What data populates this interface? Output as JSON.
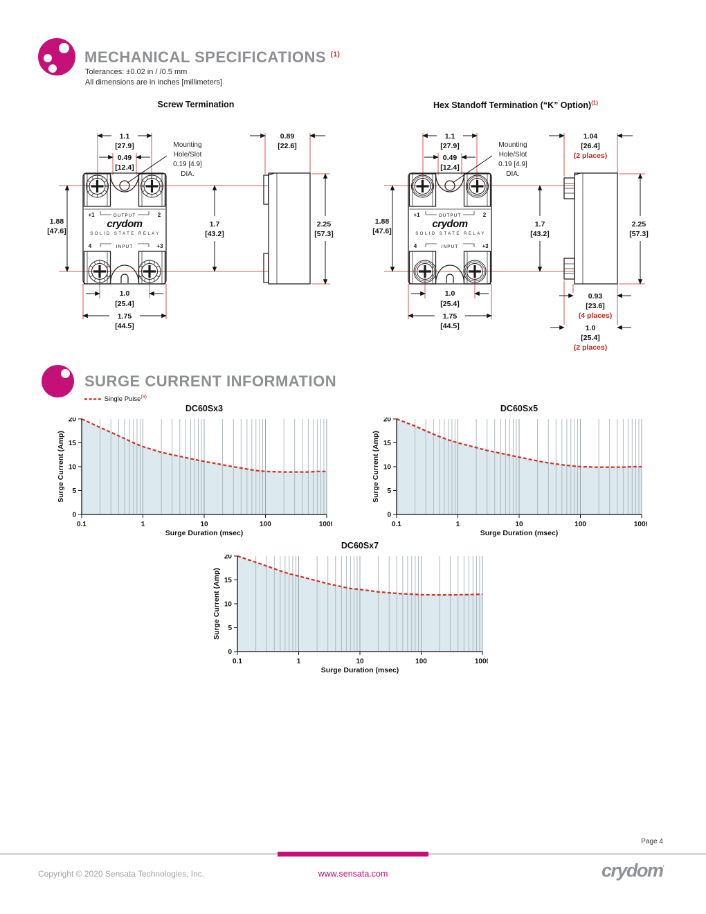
{
  "page": {
    "page_number": "Page 4",
    "copyright": "Copyright © 2020 Sensata Technologies, Inc.",
    "website": "www.sensata.com",
    "brand_logo": "crydom",
    "brand_mark": "’",
    "colors": {
      "magenta": "#c51077",
      "red": "#c8281e",
      "heading_gray": "#8d8f92",
      "chart_fill": "#dce9ee",
      "curve_red": "#d2342c"
    }
  },
  "mech": {
    "heading": "MECHANICAL SPECIFICATIONS",
    "heading_sup": "(1)",
    "tolerance_note": "Tolerances: ±0.02 in / /0.5 mm",
    "units_note": "All dimensions are in inches [millimeters]",
    "mount_note": [
      "Mounting",
      "Hole/Slot",
      "0.19 [4.9]",
      "DIA."
    ],
    "relay_face": {
      "t1": "+1",
      "output": "OUTPUT",
      "t2": "2",
      "brand": "crydom",
      "sub": "SOLID STATE RELAY",
      "t4": "4",
      "input": "INPUT",
      "t3": "+3"
    },
    "screw_view": {
      "title": "Screw Termination",
      "dims": {
        "w_top": [
          "1.1",
          "[27.9]"
        ],
        "w_inner": [
          "0.49",
          "[12.4]"
        ],
        "side_w": [
          "0.89",
          "[22.6]"
        ],
        "h_left": [
          "1.88",
          "[47.6]"
        ],
        "h_center": [
          "1.7",
          "[43.2]"
        ],
        "h_side": [
          "2.25",
          "[57.3]"
        ],
        "w_bottom_inner": [
          "1.0",
          "[25.4]"
        ],
        "w_bottom": [
          "1.75",
          "[44.5]"
        ]
      }
    },
    "hex_view": {
      "title": "Hex Standoff Termination (“K” Option)",
      "title_sup": "(1)",
      "dims": {
        "w_top": [
          "1.1",
          "[27.9]"
        ],
        "w_inner": [
          "0.49",
          "[12.4]"
        ],
        "side_w": [
          "1.04",
          "[26.4]"
        ],
        "side_w_note": "(2 places)",
        "h_left": [
          "1.88",
          "[47.6]"
        ],
        "h_center": [
          "1.7",
          "[43.2]"
        ],
        "h_side": [
          "2.25",
          "[57.3]"
        ],
        "w_bottom_inner": [
          "1.0",
          "[25.4]"
        ],
        "w_bottom": [
          "1.75",
          "[44.5]"
        ],
        "standoff_w": [
          "0.93",
          "[23.6]"
        ],
        "standoff_w_note": "(4 places)",
        "standoff_pitch": [
          "1.0",
          "[25.4]"
        ],
        "standoff_pitch_note": "(2 places)"
      }
    }
  },
  "surge": {
    "heading": "SURGE CURRENT INFORMATION",
    "legend_label": "Single Pulse",
    "legend_sup": "(9)"
  },
  "chart_data": [
    {
      "type": "area",
      "title": "DC60Sx3",
      "xlabel": "Surge Duration (msec)",
      "ylabel": "Surge Current (Amp)",
      "x_scale": "log",
      "xlim": [
        0.1,
        1000
      ],
      "ylim": [
        0,
        20
      ],
      "xticks": [
        0.1,
        1,
        10,
        100,
        1000
      ],
      "yticks": [
        0,
        5,
        10,
        15,
        20
      ],
      "grid": "vertical-log",
      "series": [
        {
          "name": "Single Pulse",
          "points": [
            [
              0.1,
              20
            ],
            [
              0.2,
              18.2
            ],
            [
              0.3,
              17.2
            ],
            [
              0.5,
              15.9
            ],
            [
              0.7,
              15.0
            ],
            [
              1,
              14.2
            ],
            [
              2,
              13.0
            ],
            [
              3,
              12.5
            ],
            [
              5,
              11.9
            ],
            [
              7,
              11.5
            ],
            [
              10,
              11.1
            ],
            [
              20,
              10.4
            ],
            [
              30,
              10.0
            ],
            [
              50,
              9.5
            ],
            [
              70,
              9.2
            ],
            [
              100,
              9.0
            ],
            [
              200,
              8.9
            ],
            [
              300,
              8.9
            ],
            [
              500,
              8.9
            ],
            [
              700,
              9.0
            ],
            [
              1000,
              9.0
            ]
          ]
        }
      ]
    },
    {
      "type": "area",
      "title": "DC60Sx5",
      "xlabel": "Surge Duration (msec)",
      "ylabel": "Surge Current (Amp)",
      "x_scale": "log",
      "xlim": [
        0.1,
        1000
      ],
      "ylim": [
        0,
        20
      ],
      "xticks": [
        0.1,
        1,
        10,
        100,
        1000
      ],
      "yticks": [
        0,
        5,
        10,
        15,
        20
      ],
      "grid": "vertical-log",
      "series": [
        {
          "name": "Single Pulse",
          "points": [
            [
              0.1,
              20
            ],
            [
              0.2,
              18.5
            ],
            [
              0.3,
              17.5
            ],
            [
              0.5,
              16.3
            ],
            [
              0.7,
              15.6
            ],
            [
              1,
              15.0
            ],
            [
              2,
              14.0
            ],
            [
              3,
              13.4
            ],
            [
              5,
              12.8
            ],
            [
              7,
              12.4
            ],
            [
              10,
              12.0
            ],
            [
              20,
              11.2
            ],
            [
              30,
              10.8
            ],
            [
              50,
              10.4
            ],
            [
              70,
              10.2
            ],
            [
              100,
              10.0
            ],
            [
              200,
              9.9
            ],
            [
              300,
              9.9
            ],
            [
              500,
              9.9
            ],
            [
              700,
              10.0
            ],
            [
              1000,
              10.0
            ]
          ]
        }
      ]
    },
    {
      "type": "area",
      "title": "DC60Sx7",
      "xlabel": "Surge Duration (msec)",
      "ylabel": "Surge Current (Amp)",
      "x_scale": "log",
      "xlim": [
        0.1,
        1000
      ],
      "ylim": [
        0,
        20
      ],
      "xticks": [
        0.1,
        1,
        10,
        100,
        1000
      ],
      "yticks": [
        0,
        5,
        10,
        15,
        20
      ],
      "grid": "vertical-log",
      "series": [
        {
          "name": "Single Pulse",
          "points": [
            [
              0.1,
              20
            ],
            [
              0.2,
              18.7
            ],
            [
              0.3,
              17.9
            ],
            [
              0.5,
              16.9
            ],
            [
              0.7,
              16.3
            ],
            [
              1,
              15.8
            ],
            [
              2,
              14.8
            ],
            [
              3,
              14.2
            ],
            [
              5,
              13.6
            ],
            [
              7,
              13.2
            ],
            [
              10,
              13.0
            ],
            [
              20,
              12.5
            ],
            [
              30,
              12.3
            ],
            [
              50,
              12.1
            ],
            [
              70,
              12.0
            ],
            [
              100,
              11.9
            ],
            [
              200,
              11.85
            ],
            [
              300,
              11.85
            ],
            [
              500,
              11.9
            ],
            [
              700,
              11.95
            ],
            [
              1000,
              12.0
            ]
          ]
        }
      ]
    }
  ]
}
